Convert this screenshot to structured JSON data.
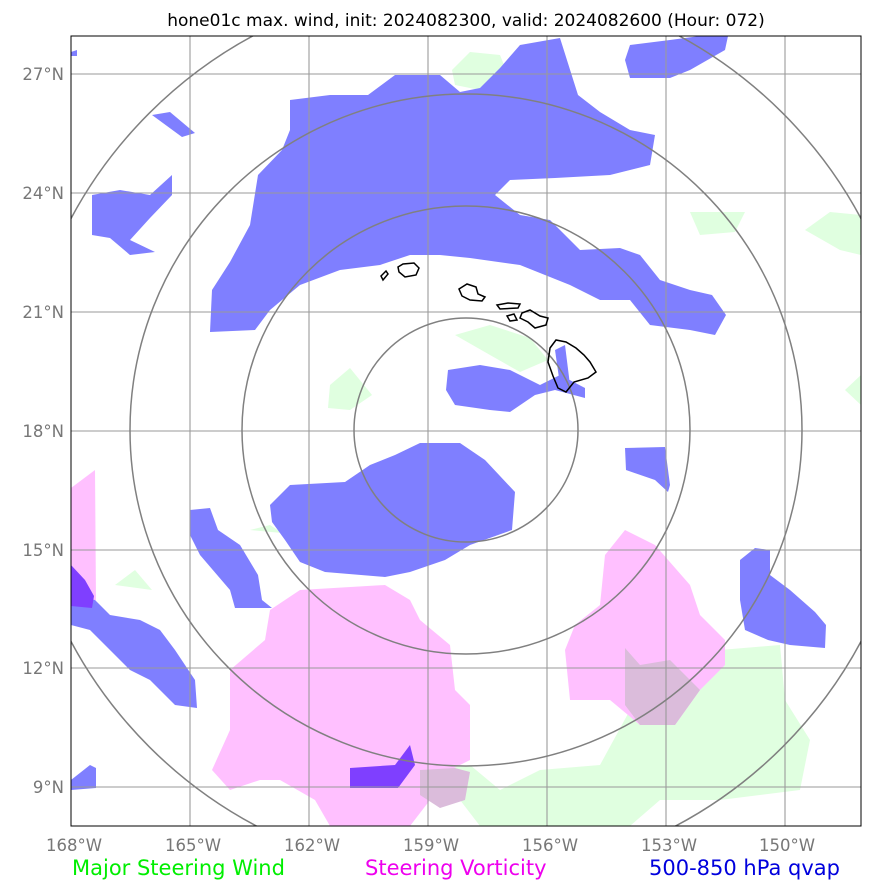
{
  "title": "hone01c max. wind, init: 2024082300, valid: 2024082600 (Hour: 072)",
  "axes": {
    "x_ticks": [
      "168°W",
      "165°W",
      "162°W",
      "159°W",
      "156°W",
      "153°W",
      "150°W"
    ],
    "y_ticks": [
      "27°N",
      "24°N",
      "21°N",
      "18°N",
      "15°N",
      "12°N",
      "9°N"
    ]
  },
  "legend": [
    {
      "label": "Major Steering Wind",
      "color": "#00ee00"
    },
    {
      "label": "Steering Vorticity",
      "color": "#ee00ee"
    },
    {
      "label": "500-850 hPa qvap",
      "color": "#0000dd"
    }
  ],
  "colors": {
    "qvap_fill": "#7f7fff",
    "vorticity_fill": "#ffc0ff",
    "wind_fill": "#e0ffe0",
    "overlap_fill": "#dbbcdb",
    "dark_overlap_fill": "#7f3fff"
  }
}
